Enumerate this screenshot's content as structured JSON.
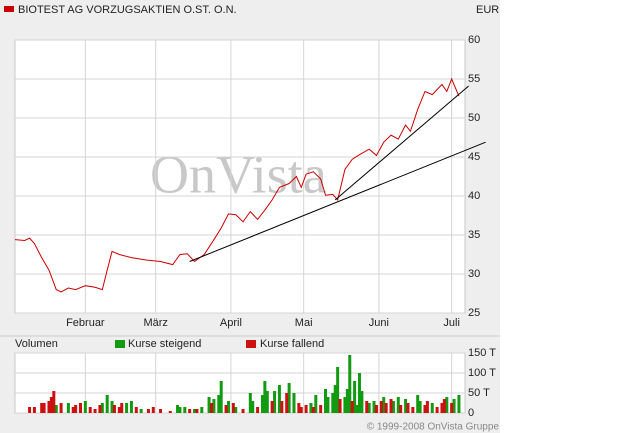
{
  "chart_data": [
    {
      "type": "line",
      "unit": "EUR",
      "grid": true,
      "series": [
        {
          "name": "BIOTEST AG VORZUGSAKTIEN O.ST. O.N.",
          "color": "#cc0000",
          "x": [
            3,
            7,
            9,
            11,
            14,
            17,
            20,
            22,
            25,
            28,
            32,
            36,
            39,
            41,
            43,
            46,
            51,
            57,
            63,
            68,
            71,
            74,
            77,
            81,
            85,
            88,
            91,
            94,
            97,
            100,
            103,
            106,
            109,
            112,
            116,
            119,
            121,
            123,
            126,
            129,
            131,
            134,
            136,
            139,
            142,
            145,
            149,
            152,
            155,
            158,
            161,
            164,
            166,
            169,
            172,
            175,
            179,
            181,
            183,
            186
          ],
          "values": [
            34.4,
            34.3,
            34.6,
            33.9,
            32.1,
            30.5,
            28,
            27.7,
            28.2,
            28,
            28.5,
            28.3,
            28,
            30.5,
            32.9,
            32.5,
            32.1,
            31.8,
            31.6,
            31.2,
            32.5,
            32.6,
            31.6,
            32.5,
            34.4,
            35.9,
            37.7,
            37.6,
            36.7,
            38,
            37,
            38.2,
            39.5,
            41.1,
            41.6,
            42.5,
            41.1,
            42.8,
            43.1,
            42.2,
            40.1,
            40.2,
            39.5,
            43.4,
            44.7,
            45.3,
            46,
            45.2,
            46.9,
            47.8,
            47.3,
            49.1,
            48.3,
            51.1,
            53.4,
            53,
            54.3,
            53.4,
            55,
            52.8
          ]
        }
      ],
      "trendlines": [
        {
          "color": "#000000",
          "x": [
            75,
            197
          ],
          "values": [
            31.6,
            46.9
          ]
        },
        {
          "color": "#000000",
          "x": [
            135,
            190
          ],
          "values": [
            39.5,
            54.1
          ]
        }
      ],
      "xlim": [
        3,
        188.5
      ],
      "xticks": [
        {
          "value": 32,
          "label": "Februar"
        },
        {
          "value": 61,
          "label": "März"
        },
        {
          "value": 92,
          "label": "April"
        },
        {
          "value": 122,
          "label": "Mai"
        },
        {
          "value": 153,
          "label": "Juni"
        },
        {
          "value": 183,
          "label": "Juli"
        }
      ],
      "ylim": [
        25,
        60
      ],
      "yticks": [
        25,
        30,
        35,
        40,
        45,
        50,
        55,
        60
      ]
    },
    {
      "type": "bar",
      "title": "Volumen",
      "grid": true,
      "series": [
        {
          "name": "Kurse steigend",
          "color": "#129a12",
          "x": [
            20,
            25,
            32,
            39,
            41,
            43,
            49,
            51,
            55,
            70,
            71,
            73,
            77,
            80,
            83,
            85,
            87,
            88,
            91,
            94,
            100,
            101,
            105,
            106,
            107,
            110,
            112,
            116,
            118,
            125,
            127,
            131,
            132,
            134,
            135,
            136,
            139,
            140,
            141,
            143,
            144,
            145,
            146,
            149,
            151,
            155,
            159,
            161,
            164,
            169,
            170,
            175,
            181,
            184,
            186
          ],
          "values": [
            20000,
            25000,
            30000,
            25000,
            45000,
            30000,
            25000,
            30000,
            10000,
            20000,
            15000,
            15000,
            10000,
            15000,
            40000,
            35000,
            45000,
            80000,
            30000,
            15000,
            50000,
            30000,
            45000,
            80000,
            55000,
            55000,
            70000,
            75000,
            50000,
            25000,
            45000,
            60000,
            40000,
            50000,
            70000,
            115000,
            40000,
            60000,
            145000,
            80000,
            20000,
            100000,
            55000,
            25000,
            30000,
            40000,
            30000,
            40000,
            35000,
            45000,
            30000,
            25000,
            40000,
            35000,
            45000
          ]
        },
        {
          "name": "Kurse fallend",
          "color": "#cc1111",
          "x": [
            9,
            11,
            14,
            15,
            17,
            18,
            19,
            22,
            27,
            28,
            30,
            34,
            36,
            38,
            44,
            46,
            47,
            53,
            58,
            60,
            63,
            67,
            75,
            78,
            84,
            90,
            93,
            97,
            103,
            109,
            113,
            115,
            120,
            121,
            123,
            126,
            129,
            137,
            142,
            148,
            152,
            154,
            156,
            158,
            162,
            165,
            167,
            172,
            173,
            177,
            179,
            180,
            183
          ],
          "values": [
            15000,
            15000,
            25000,
            25000,
            30000,
            40000,
            55000,
            25000,
            15000,
            20000,
            25000,
            15000,
            10000,
            20000,
            20000,
            15000,
            25000,
            15000,
            10000,
            15000,
            10000,
            5000,
            10000,
            10000,
            25000,
            20000,
            25000,
            10000,
            15000,
            30000,
            30000,
            50000,
            25000,
            15000,
            20000,
            15000,
            20000,
            35000,
            30000,
            30000,
            20000,
            30000,
            25000,
            35000,
            20000,
            25000,
            15000,
            20000,
            30000,
            15000,
            25000,
            35000,
            25000
          ]
        }
      ],
      "xlim": [
        3,
        188.5
      ],
      "ylim": [
        0,
        150000
      ],
      "yticks": [
        0,
        {
          "value": 50000,
          "label": "50 T"
        },
        {
          "value": 100000,
          "label": "100 T"
        },
        {
          "value": 150000,
          "label": "150 T"
        }
      ]
    }
  ],
  "watermark": "OnVista",
  "copyright": "© 1999-2008 OnVista Gruppe"
}
